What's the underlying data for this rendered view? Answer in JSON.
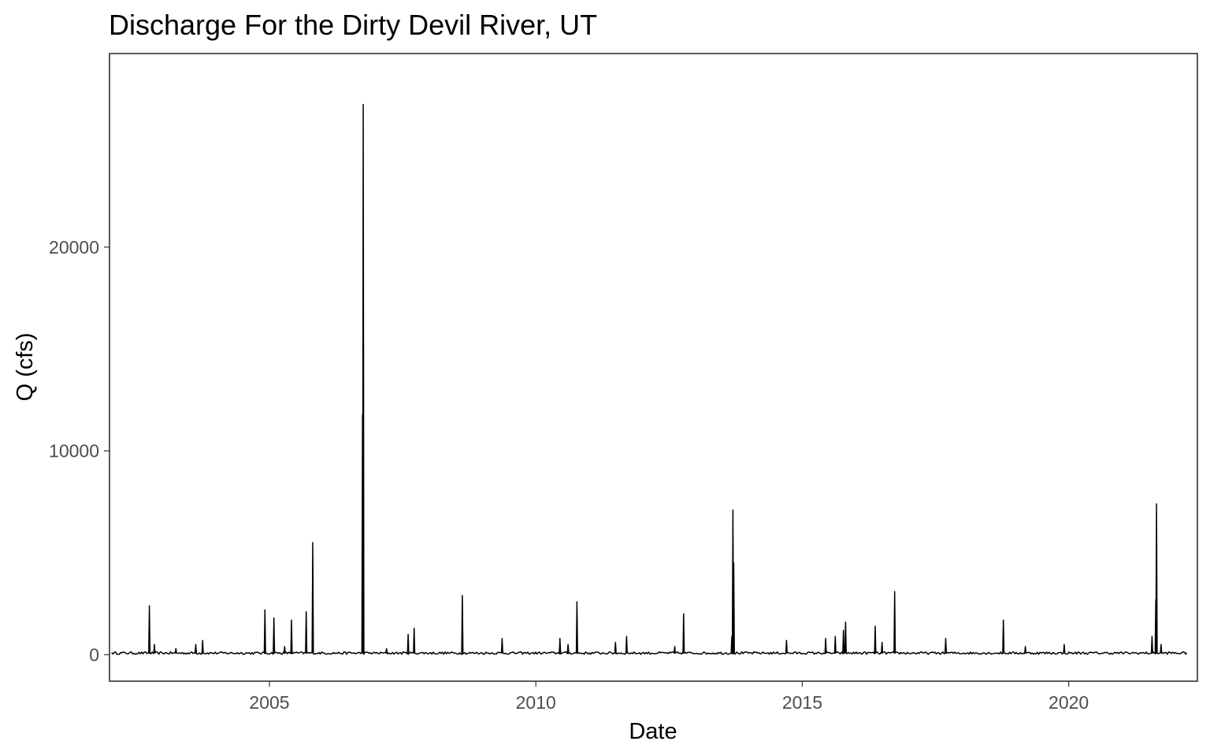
{
  "chart_data": {
    "type": "line",
    "title": "Discharge For the Dirty Devil River, UT",
    "xlabel": "Date",
    "ylabel": "Q (cfs)",
    "xlim": [
      "2002-01-01",
      "2022-06-01"
    ],
    "ylim": [
      -1300,
      29500
    ],
    "x_ticks": [
      "2005",
      "2010",
      "2015",
      "2020"
    ],
    "y_ticks": [
      "0",
      "10000",
      "20000"
    ],
    "grid": false,
    "legend": "none",
    "baseline_q": 80,
    "series": [
      {
        "points": [
          [
            "2002-01-15",
            100
          ],
          [
            "2002-10-01",
            2400
          ],
          [
            "2002-11-05",
            500
          ],
          [
            "2003-04-01",
            300
          ],
          [
            "2003-08-15",
            500
          ],
          [
            "2003-10-01",
            700
          ],
          [
            "2004-12-01",
            2200
          ],
          [
            "2005-02-01",
            1800
          ],
          [
            "2005-04-15",
            400
          ],
          [
            "2005-06-01",
            1700
          ],
          [
            "2005-09-10",
            2100
          ],
          [
            "2005-10-25",
            5500
          ],
          [
            "2006-10-01",
            11800
          ],
          [
            "2006-10-06",
            27000
          ],
          [
            "2007-03-15",
            300
          ],
          [
            "2007-08-10",
            1000
          ],
          [
            "2007-09-20",
            1300
          ],
          [
            "2008-08-15",
            2900
          ],
          [
            "2009-05-15",
            800
          ],
          [
            "2010-06-15",
            800
          ],
          [
            "2010-08-10",
            500
          ],
          [
            "2010-10-10",
            2600
          ],
          [
            "2011-07-01",
            600
          ],
          [
            "2011-09-15",
            900
          ],
          [
            "2012-08-10",
            400
          ],
          [
            "2012-10-10",
            2000
          ],
          [
            "2013-09-05",
            900
          ],
          [
            "2013-09-13",
            7100
          ],
          [
            "2013-09-18",
            4500
          ],
          [
            "2014-09-15",
            700
          ],
          [
            "2015-06-10",
            800
          ],
          [
            "2015-08-15",
            900
          ],
          [
            "2015-10-10",
            1200
          ],
          [
            "2015-10-25",
            1600
          ],
          [
            "2016-05-15",
            1400
          ],
          [
            "2016-07-01",
            600
          ],
          [
            "2016-09-25",
            3100
          ],
          [
            "2017-09-10",
            800
          ],
          [
            "2018-10-10",
            1700
          ],
          [
            "2019-03-10",
            400
          ],
          [
            "2019-12-01",
            500
          ],
          [
            "2021-07-25",
            900
          ],
          [
            "2021-08-20",
            2700
          ],
          [
            "2021-08-25",
            7400
          ],
          [
            "2021-09-25",
            500
          ],
          [
            "2022-03-20",
            100
          ]
        ]
      }
    ]
  }
}
